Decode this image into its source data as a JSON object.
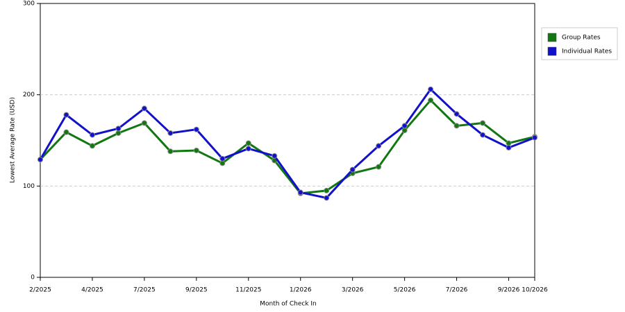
{
  "chart_data": {
    "type": "line",
    "x_label": "Month of Check In",
    "y_label": "Lowest Average Rate (USD)",
    "categories": [
      "2/2025",
      null,
      "4/2025",
      null,
      "7/2025",
      null,
      "9/2025",
      null,
      "11/2025",
      null,
      "1/2026",
      null,
      "3/2026",
      null,
      "5/2026",
      null,
      "7/2026",
      null,
      "9/2026",
      "10/2026"
    ],
    "series": [
      {
        "name": "Group Rates",
        "color": "#117711",
        "values": [
          129,
          159,
          144,
          158,
          169,
          138,
          139,
          125,
          147,
          128,
          92,
          95,
          114,
          121,
          161,
          194,
          166,
          169,
          147,
          154
        ]
      },
      {
        "name": "Individual Rates",
        "color": "#1111cc",
        "values": [
          129,
          178,
          156,
          163,
          185,
          158,
          162,
          130,
          141,
          133,
          93,
          87,
          118,
          144,
          166,
          206,
          179,
          156,
          142,
          153
        ]
      }
    ],
    "ylim": [
      0,
      300
    ],
    "yticks": [
      0,
      100,
      200,
      300
    ],
    "grid": true,
    "legend": "top-right"
  }
}
